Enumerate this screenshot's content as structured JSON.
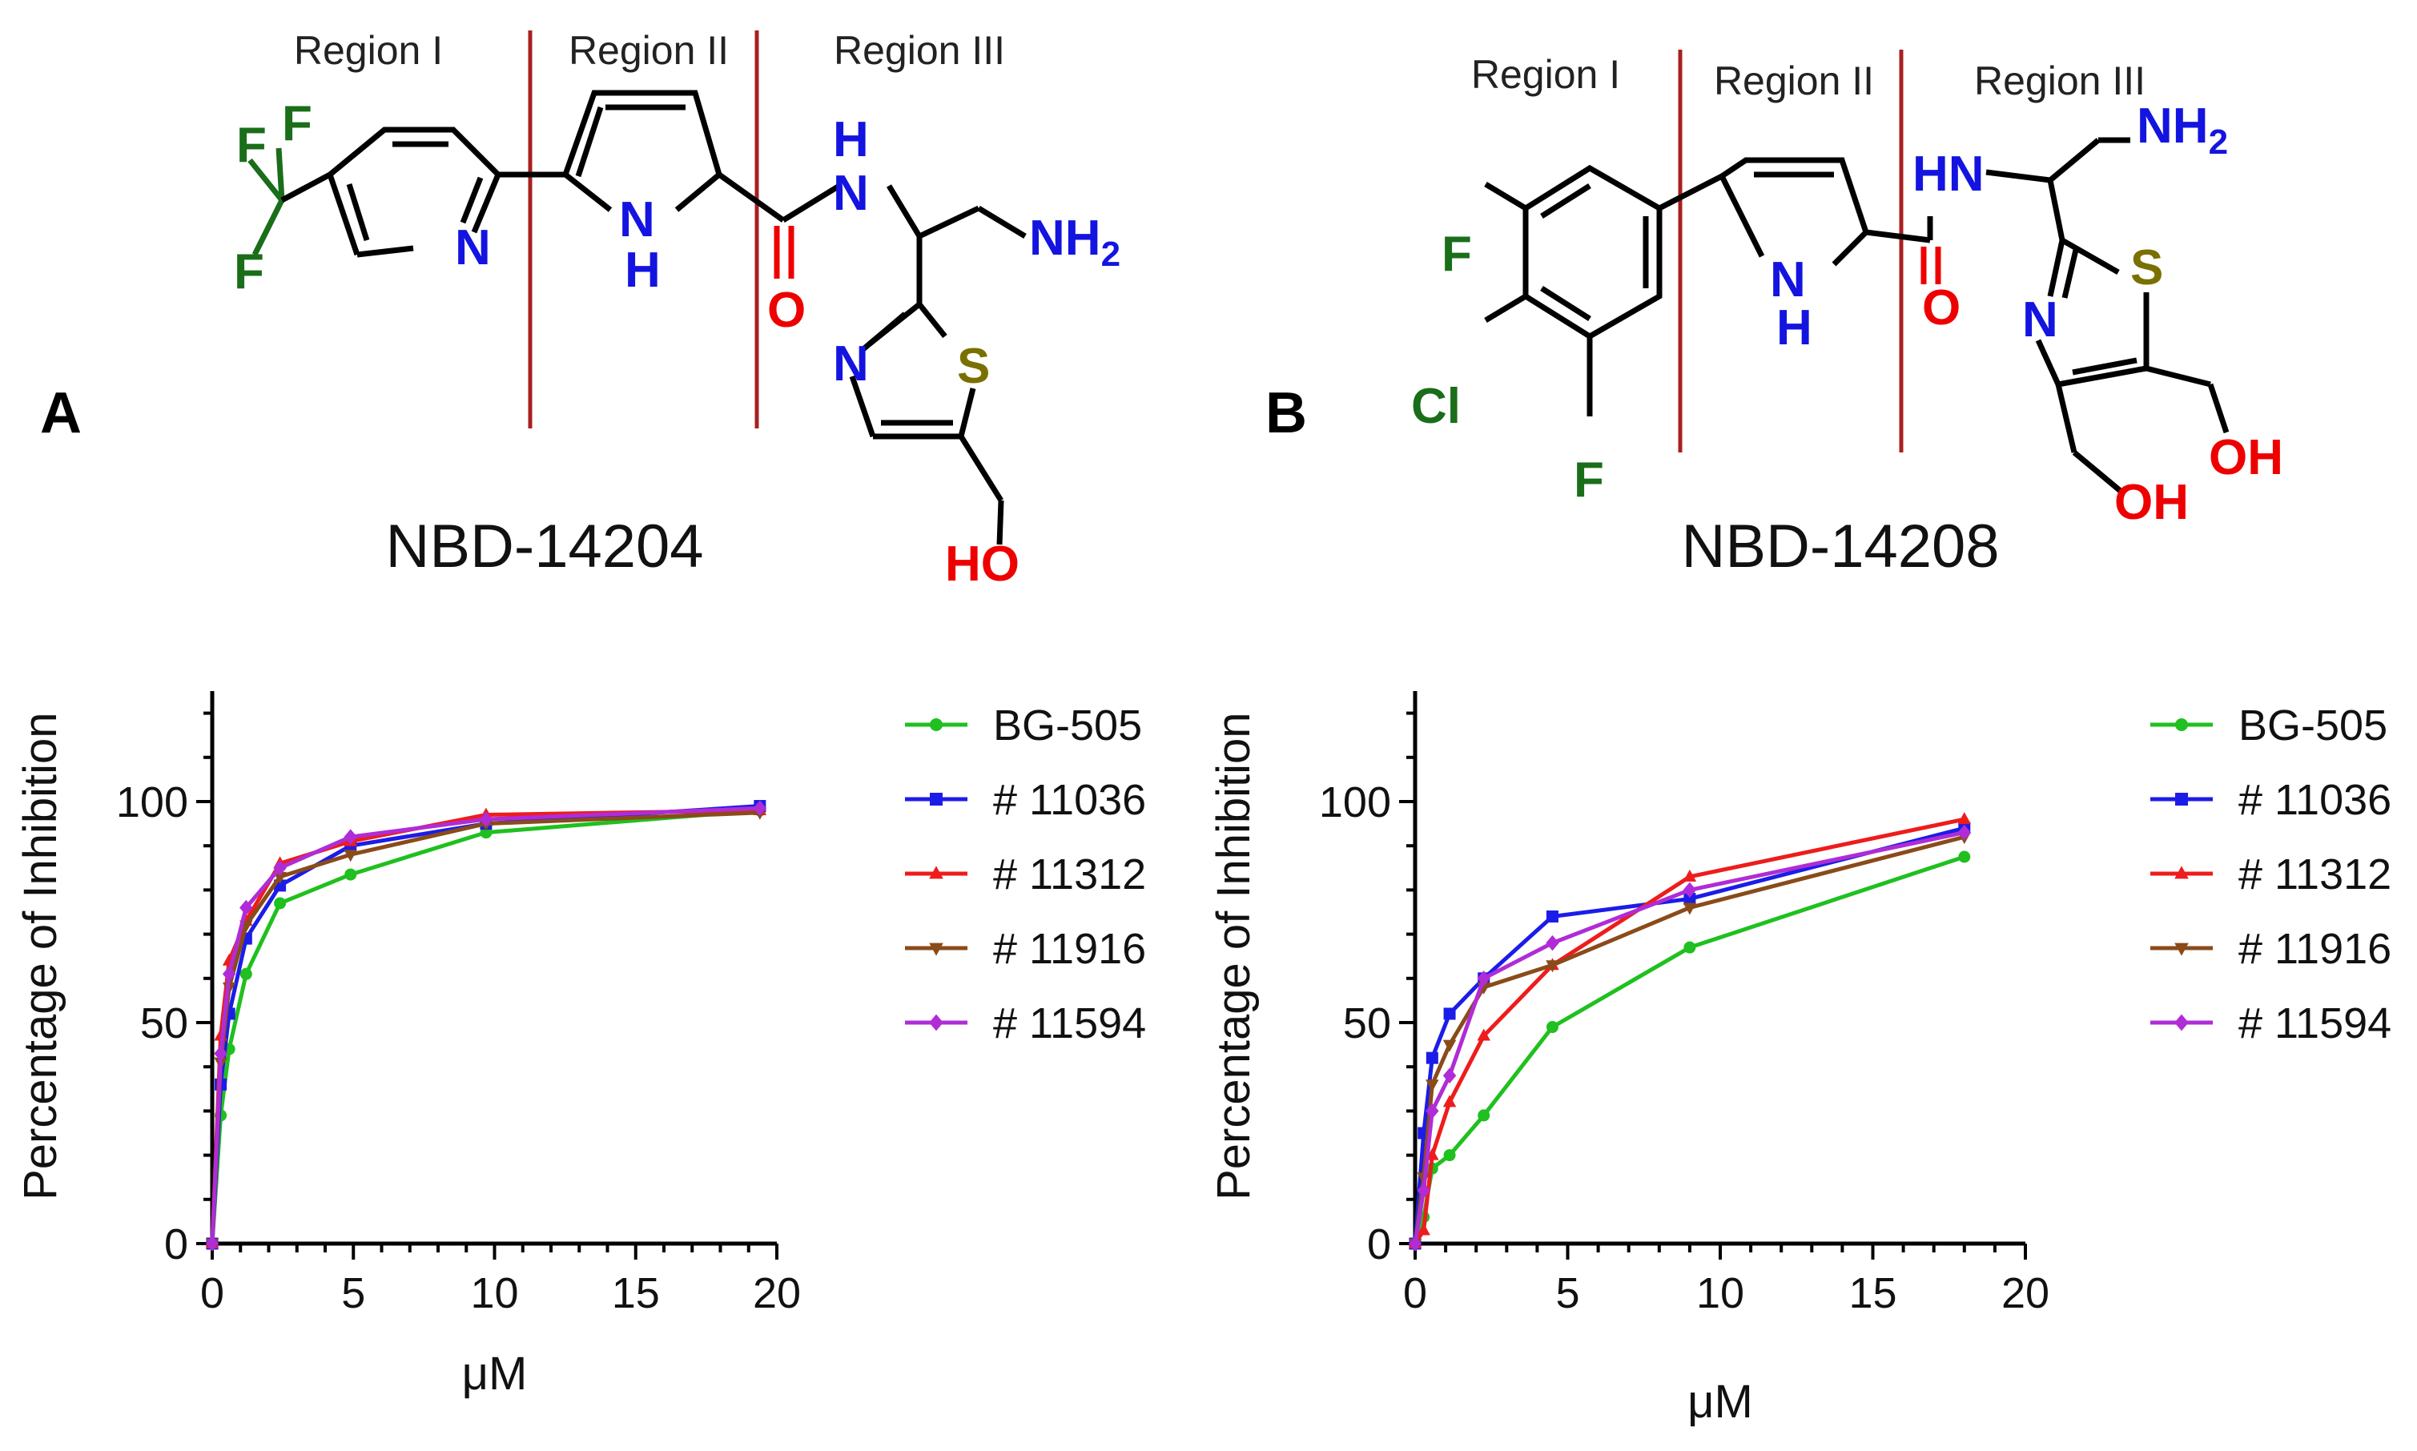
{
  "colors": {
    "bg": "#ffffff",
    "axis": "#000000",
    "divider": "#a82020",
    "carbon_bond": "#000000",
    "nitrogen": "#1414e0",
    "oxygen": "#ee0000",
    "sulfur": "#7a7000",
    "halogen": "#1a6e1a"
  },
  "panels": [
    {
      "letter": "A",
      "compound": "NBD-14204",
      "regions": [
        "Region I",
        "Region II",
        "Region III"
      ],
      "atoms": {
        "f1": "F",
        "f2": "F",
        "f3": "F",
        "n_pyridine": "N",
        "nh_h": "H",
        "nh_n": "N",
        "o_amide": "O",
        "amide_h": "H",
        "amide_n": "N",
        "nh2": "NH",
        "nh2_sub": "2",
        "n_thiazole": "N",
        "s_thiazole": "S",
        "oh": "HO"
      }
    },
    {
      "letter": "B",
      "compound": "NBD-14208",
      "regions": [
        "Region I",
        "Region II",
        "Region III"
      ],
      "atoms": {
        "f_top": "F",
        "cl": "Cl",
        "f_bot": "F",
        "nh_n": "N",
        "nh_h": "H",
        "o_amide": "O",
        "hn": "HN",
        "nh2": "NH",
        "nh2_sub": "2",
        "n_thiazole": "N",
        "s_thiazole": "S",
        "oh1": "OH",
        "oh2": "OH"
      }
    }
  ],
  "chart_data": [
    {
      "type": "line",
      "panel": "A",
      "xlabel": "μM",
      "ylabel": "Percentage of Inhibition",
      "xlim": [
        0,
        20
      ],
      "ylim": [
        0,
        125
      ],
      "xticks": [
        0,
        5,
        10,
        15,
        20
      ],
      "yticks": [
        0,
        50,
        100
      ],
      "x": [
        0,
        0.3,
        0.6,
        1.2,
        2.4,
        4.9,
        9.7,
        19.4
      ],
      "series": [
        {
          "name": "BG-505",
          "color": "#1fc01f",
          "marker": "circle",
          "values": [
            0,
            29,
            44,
            61,
            77,
            83.5,
            93,
            98
          ]
        },
        {
          "name": "# 11036",
          "color": "#1c1ce8",
          "marker": "square",
          "values": [
            0,
            36,
            52,
            69,
            81,
            90,
            95,
            99
          ]
        },
        {
          "name": "# 11312",
          "color": "#ee1c1c",
          "marker": "triangle",
          "values": [
            0,
            47,
            64,
            73,
            86,
            91,
            97,
            98
          ]
        },
        {
          "name": "# 11916",
          "color": "#8a4b1a",
          "marker": "down-triangle",
          "values": [
            0,
            41,
            58,
            72,
            83,
            88,
            95,
            97.5
          ]
        },
        {
          "name": "# 11594",
          "color": "#b02cd6",
          "marker": "diamond",
          "values": [
            0,
            43,
            61,
            76,
            85,
            92,
            96,
            98.5
          ]
        }
      ]
    },
    {
      "type": "line",
      "panel": "B",
      "xlabel": "μM",
      "ylabel": "Percentage of Inhibition",
      "xlim": [
        0,
        20
      ],
      "ylim": [
        0,
        125
      ],
      "xticks": [
        0,
        5,
        10,
        15,
        20
      ],
      "yticks": [
        0,
        50,
        100
      ],
      "x": [
        0,
        0.28,
        0.56,
        1.13,
        2.25,
        4.5,
        9,
        18
      ],
      "series": [
        {
          "name": "BG-505",
          "color": "#1fc01f",
          "marker": "circle",
          "values": [
            0,
            6,
            17,
            20,
            29,
            49,
            67,
            87.5
          ]
        },
        {
          "name": "# 11036",
          "color": "#1c1ce8",
          "marker": "square",
          "values": [
            0,
            25,
            42,
            52,
            60,
            74,
            78,
            94
          ]
        },
        {
          "name": "# 11312",
          "color": "#ee1c1c",
          "marker": "triangle",
          "values": [
            0,
            3,
            20,
            32,
            47,
            63,
            83,
            96
          ]
        },
        {
          "name": "# 11916",
          "color": "#8a4b1a",
          "marker": "down-triangle",
          "values": [
            0,
            15,
            36,
            45,
            58,
            63,
            76,
            92
          ]
        },
        {
          "name": "# 11594",
          "color": "#b02cd6",
          "marker": "diamond",
          "values": [
            0,
            12,
            30,
            38,
            60,
            68,
            80,
            93
          ]
        }
      ]
    }
  ]
}
